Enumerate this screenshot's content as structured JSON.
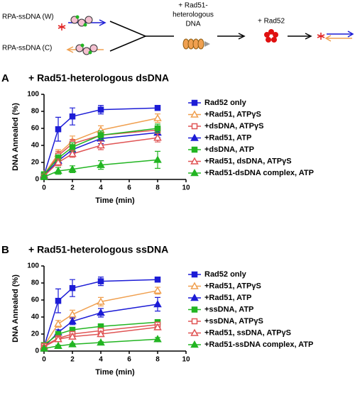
{
  "schematic": {
    "strand_w": "RPA-ssDNA (W)",
    "strand_c": "RPA-ssDNA (C)",
    "step1": [
      "+ Rad51-",
      "heterologous",
      "DNA"
    ],
    "step2": "+ Rad52"
  },
  "chart_data": [
    {
      "type": "line",
      "panel": "A",
      "title": "+ Rad51-heterologous dsDNA",
      "x_label": "Time (min)",
      "y_label": "DNA Annealed (%)",
      "x": [
        0,
        1,
        2,
        4,
        8
      ],
      "xlim": [
        0,
        10
      ],
      "xticks": [
        0,
        2,
        4,
        6,
        8,
        10
      ],
      "ylim": [
        0,
        100
      ],
      "yticks": [
        0,
        20,
        40,
        60,
        80,
        100
      ],
      "series": [
        {
          "name": "Rad52 only",
          "color": "#1c1cd6",
          "marker": "square",
          "filled": true,
          "values": [
            5,
            59,
            74,
            82,
            84
          ],
          "errors": [
            2,
            14,
            10,
            5,
            2
          ]
        },
        {
          "name": "+Rad51, ATPγS",
          "color": "#f0a050",
          "marker": "triangle",
          "filled": false,
          "values": [
            6,
            30,
            45,
            58,
            72
          ],
          "errors": [
            2,
            5,
            6,
            5,
            5
          ]
        },
        {
          "name": "+dsDNA, ATPγS",
          "color": "#e05555",
          "marker": "square",
          "filled": false,
          "values": [
            5,
            28,
            42,
            52,
            58
          ],
          "errors": [
            2,
            5,
            5,
            5,
            4
          ]
        },
        {
          "name": "+Rad51, ATP",
          "color": "#1c1cd6",
          "marker": "triangle",
          "filled": true,
          "values": [
            5,
            22,
            35,
            48,
            55
          ],
          "errors": [
            2,
            4,
            5,
            6,
            6
          ]
        },
        {
          "name": "+dsDNA, ATP",
          "color": "#22b522",
          "marker": "square",
          "filled": true,
          "values": [
            6,
            25,
            38,
            52,
            60
          ],
          "errors": [
            2,
            4,
            5,
            5,
            5
          ]
        },
        {
          "name": "+Rad51, dsDNA, ATPγS",
          "color": "#e05555",
          "marker": "triangle",
          "filled": false,
          "values": [
            4,
            20,
            30,
            40,
            49
          ],
          "errors": [
            2,
            4,
            4,
            5,
            5
          ]
        },
        {
          "name": "+Rad51-dsDNA complex, ATP",
          "color": "#22b522",
          "marker": "triangle",
          "filled": true,
          "values": [
            3,
            10,
            12,
            17,
            23
          ],
          "errors": [
            2,
            4,
            4,
            5,
            10
          ]
        }
      ]
    },
    {
      "type": "line",
      "panel": "B",
      "title": "+ Rad51-heterologous ssDNA",
      "x_label": "Time (min)",
      "y_label": "DNA Annealed (%)",
      "x": [
        0,
        1,
        2,
        4,
        8
      ],
      "xlim": [
        0,
        10
      ],
      "xticks": [
        0,
        2,
        4,
        6,
        8,
        10
      ],
      "ylim": [
        0,
        100
      ],
      "yticks": [
        0,
        20,
        40,
        60,
        80,
        100
      ],
      "series": [
        {
          "name": "Rad52 only",
          "color": "#1c1cd6",
          "marker": "square",
          "filled": true,
          "values": [
            5,
            59,
            74,
            82,
            84
          ],
          "errors": [
            2,
            14,
            10,
            5,
            2
          ]
        },
        {
          "name": "+Rad51, ATPγS",
          "color": "#f0a050",
          "marker": "triangle",
          "filled": false,
          "values": [
            6,
            32,
            43,
            58,
            71
          ],
          "errors": [
            2,
            4,
            5,
            5,
            4
          ]
        },
        {
          "name": "+Rad51, ATP",
          "color": "#1c1cd6",
          "marker": "triangle",
          "filled": true,
          "values": [
            5,
            22,
            35,
            45,
            55
          ],
          "errors": [
            2,
            3,
            4,
            5,
            8
          ]
        },
        {
          "name": "+ssDNA, ATP",
          "color": "#22b522",
          "marker": "square",
          "filled": true,
          "values": [
            7,
            20,
            25,
            29,
            34
          ],
          "errors": [
            2,
            3,
            2,
            2,
            2
          ]
        },
        {
          "name": "+ssDNA, ATPγS",
          "color": "#e05555",
          "marker": "square",
          "filled": false,
          "values": [
            6,
            15,
            20,
            24,
            31
          ],
          "errors": [
            2,
            3,
            3,
            3,
            3
          ]
        },
        {
          "name": "+Rad51, ssDNA, ATPγS",
          "color": "#e05555",
          "marker": "triangle",
          "filled": false,
          "values": [
            5,
            14,
            17,
            20,
            28
          ],
          "errors": [
            2,
            3,
            3,
            3,
            3
          ]
        },
        {
          "name": "+Rad51-ssDNA complex, ATP",
          "color": "#22b522",
          "marker": "triangle",
          "filled": true,
          "values": [
            3,
            6,
            8,
            10,
            14
          ],
          "errors": [
            1,
            1,
            1,
            1,
            2
          ]
        }
      ]
    }
  ]
}
